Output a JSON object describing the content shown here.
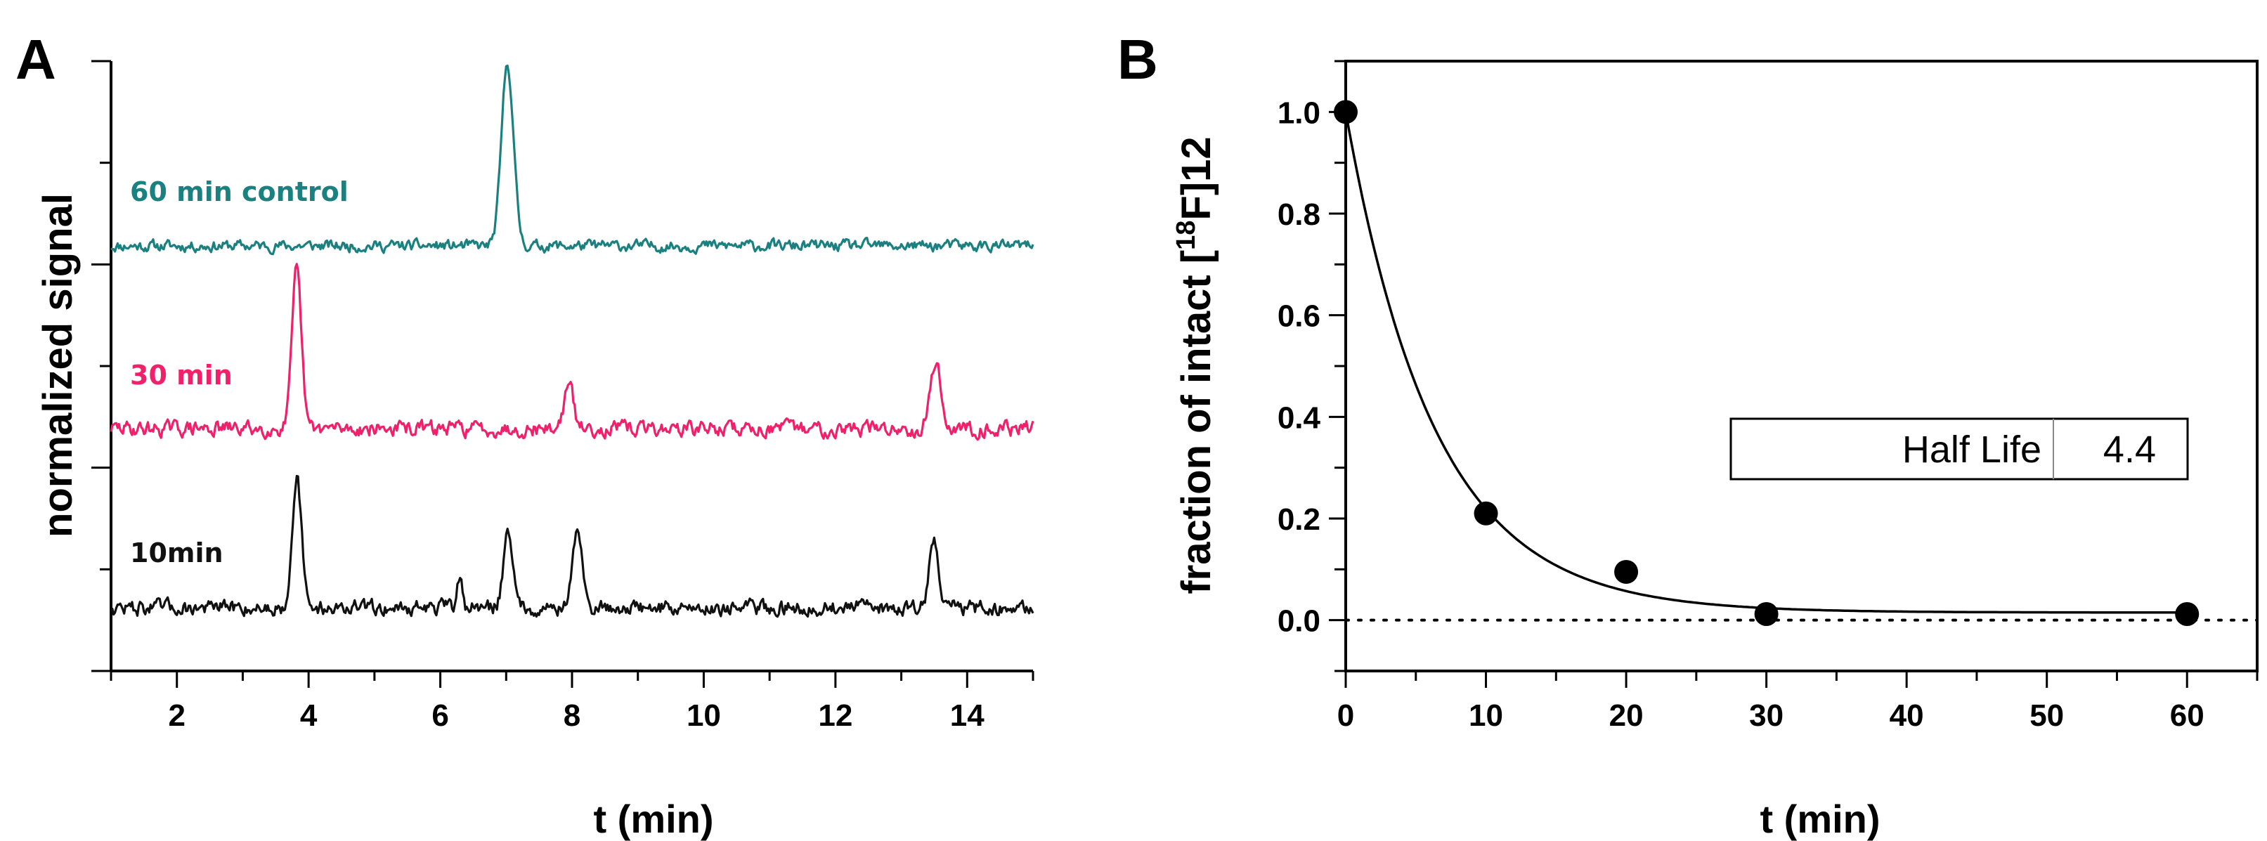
{
  "chart_data": [
    {
      "panel": "A",
      "type": "line",
      "title": "",
      "xlabel": "t (min)",
      "ylabel": "normalized signal",
      "xlim": [
        1,
        15
      ],
      "xticks": [
        "2",
        "4",
        "6",
        "8",
        "10",
        "12",
        "14"
      ],
      "series": [
        {
          "name": "60 min control",
          "color": "#1a8080",
          "baseline": 0.2,
          "noise": 0.025,
          "peaks": [
            {
              "t": 7.02,
              "height": 1.0,
              "width": 0.09
            }
          ]
        },
        {
          "name": "30 min",
          "color": "#f0206a",
          "baseline": 0.2,
          "noise": 0.035,
          "peaks": [
            {
              "t": 3.82,
              "height": 0.9,
              "width": 0.07
            },
            {
              "t": 7.95,
              "height": 0.25,
              "width": 0.07
            },
            {
              "t": 13.52,
              "height": 0.38,
              "width": 0.08
            }
          ]
        },
        {
          "name": "10min",
          "color": "#111111",
          "baseline": 0.2,
          "noise": 0.035,
          "peaks": [
            {
              "t": 3.82,
              "height": 0.75,
              "width": 0.07
            },
            {
              "t": 7.03,
              "height": 0.45,
              "width": 0.07
            },
            {
              "t": 8.08,
              "height": 0.45,
              "width": 0.07
            },
            {
              "t": 13.5,
              "height": 0.4,
              "width": 0.07
            },
            {
              "t": 6.3,
              "height": 0.18,
              "width": 0.04
            }
          ]
        }
      ]
    },
    {
      "panel": "B",
      "type": "scatter",
      "title": "",
      "xlabel": "t (min)",
      "ylabel_main": "fraction of intact [",
      "ylabel_sup": "18",
      "ylabel_end": "F]12",
      "xlim": [
        0,
        65
      ],
      "ylim": [
        -0.1,
        1.1
      ],
      "xticks": [
        0,
        10,
        20,
        30,
        40,
        50,
        60
      ],
      "yticks": [
        "0.0",
        "0.2",
        "0.4",
        "0.6",
        "0.8",
        "1.0"
      ],
      "points": [
        {
          "x": 0,
          "y": 1.0
        },
        {
          "x": 10,
          "y": 0.21
        },
        {
          "x": 20,
          "y": 0.095
        },
        {
          "x": 30,
          "y": 0.012
        },
        {
          "x": 60,
          "y": 0.012
        }
      ],
      "fit": {
        "model": "exponential decay",
        "y0": 0.015,
        "a": 0.985,
        "half_life": 4.4
      },
      "reference_line_y": 0.0,
      "legend": {
        "label": "Half Life",
        "value": "4.4"
      }
    }
  ]
}
